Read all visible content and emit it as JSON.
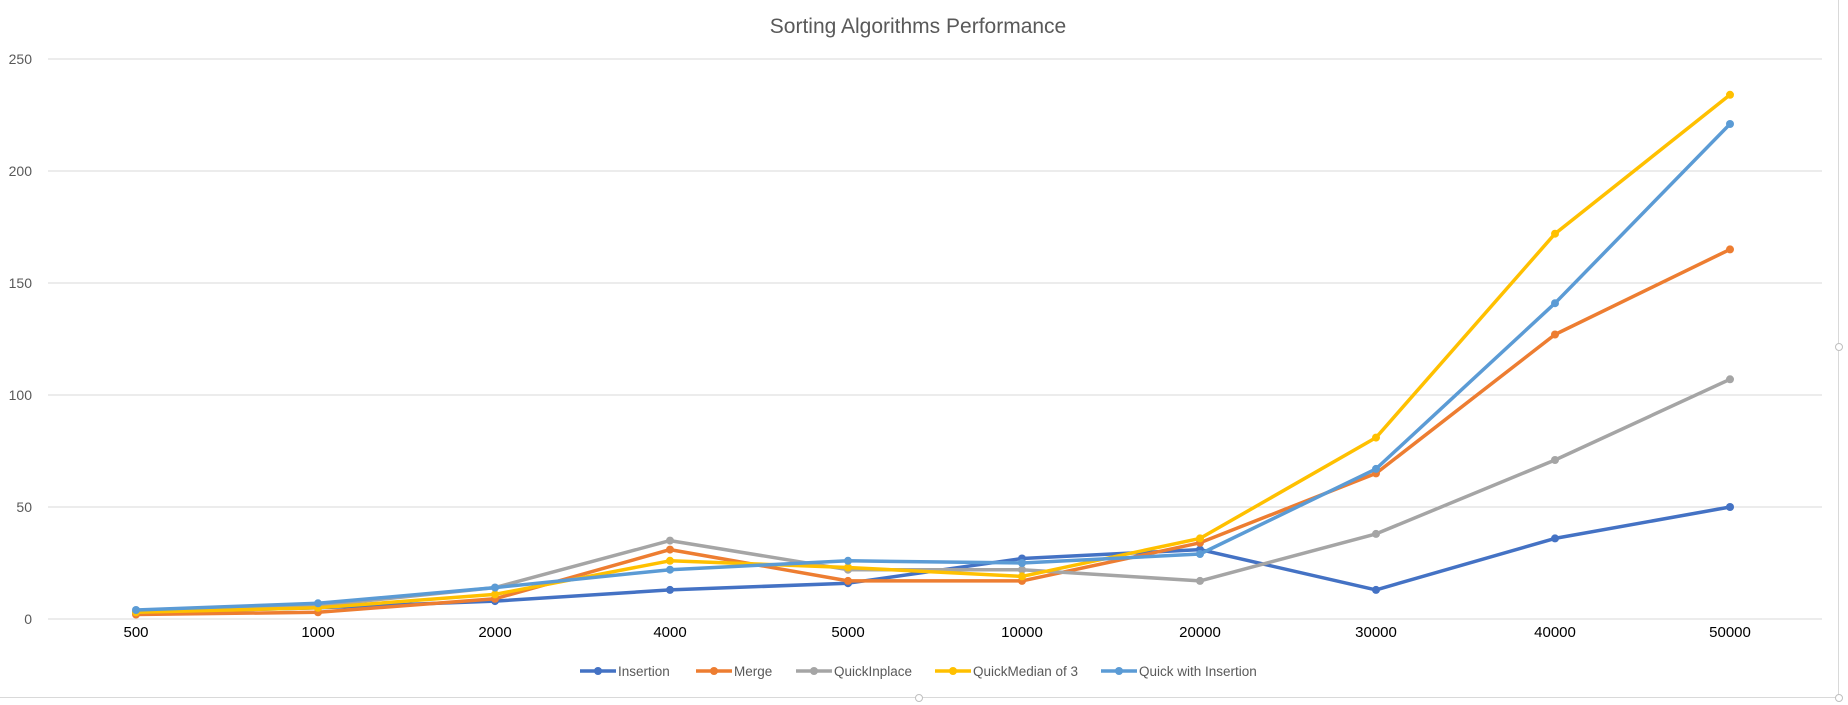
{
  "chart_data": {
    "type": "line",
    "title": "Sorting Algorithms Performance",
    "xlabel": "",
    "ylabel": "",
    "categories": [
      "500",
      "1000",
      "2000",
      "4000",
      "5000",
      "10000",
      "20000",
      "30000",
      "40000",
      "50000"
    ],
    "ylim": [
      0,
      250
    ],
    "yticks": [
      0,
      50,
      100,
      150,
      200,
      250
    ],
    "grid": true,
    "legend_position": "bottom",
    "series": [
      {
        "name": "Insertion",
        "color": "#4472c4",
        "values": [
          3,
          5,
          8,
          13,
          16,
          27,
          31,
          13,
          36,
          50
        ]
      },
      {
        "name": "Merge",
        "color": "#ed7d31",
        "values": [
          2,
          3,
          9,
          31,
          17,
          17,
          34,
          65,
          127,
          165
        ]
      },
      {
        "name": "QuickInplace",
        "color": "#a5a5a5",
        "values": [
          3,
          6,
          14,
          35,
          22,
          22,
          17,
          38,
          71,
          107
        ]
      },
      {
        "name": "QuickMedian of 3",
        "color": "#ffc000",
        "values": [
          3,
          5,
          11,
          26,
          23,
          19,
          36,
          81,
          172,
          234
        ]
      },
      {
        "name": "Quick with Insertion",
        "color": "#5b9bd5",
        "values": [
          4,
          7,
          14,
          22,
          26,
          25,
          29,
          67,
          141,
          221
        ]
      }
    ]
  }
}
